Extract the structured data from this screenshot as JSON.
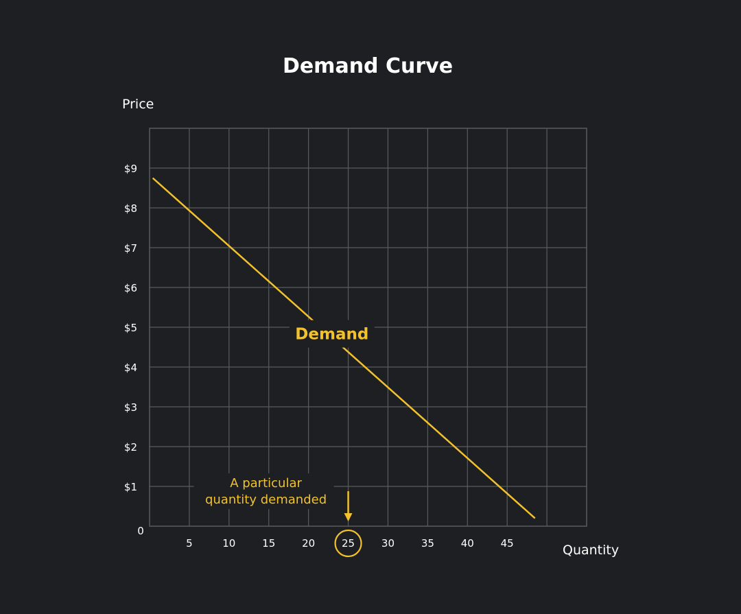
{
  "chart_data": {
    "type": "line",
    "title": "Demand Curve",
    "ylabel": "Price",
    "xlabel": "Quantity",
    "xlim": [
      0,
      55
    ],
    "ylim": [
      0,
      10
    ],
    "x_ticks": [
      5,
      10,
      15,
      20,
      25,
      30,
      35,
      40,
      45
    ],
    "y_ticks": [
      1,
      2,
      3,
      4,
      5,
      6,
      7,
      8,
      9
    ],
    "y_tick_labels": [
      "$1",
      "$2",
      "$3",
      "$4",
      "$5",
      "$6",
      "$7",
      "$8",
      "$9"
    ],
    "origin_label": "0",
    "grid": true,
    "series": [
      {
        "name": "Demand",
        "points": [
          [
            0.4,
            8.75
          ],
          [
            48.5,
            0.2
          ]
        ]
      }
    ],
    "annotations": [
      {
        "text_lines": [
          "A particular",
          "quantity demanded"
        ],
        "x": 25,
        "highlight_tick": "25"
      }
    ],
    "colors": {
      "background": "#1e1f22",
      "grid": "#5a5b5f",
      "line": "#f2c12e",
      "text": "#ffffff"
    }
  }
}
